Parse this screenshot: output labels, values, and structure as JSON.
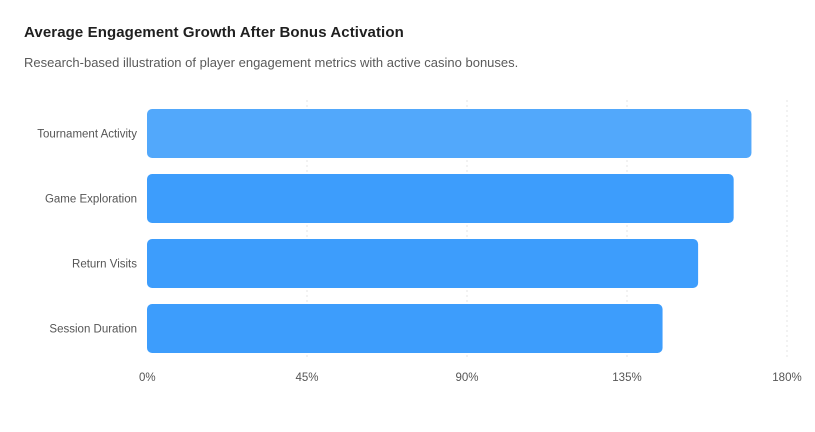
{
  "header": {
    "title": "Average Engagement Growth After Bonus Activation",
    "subtitle": "Research-based illustration of player engagement metrics with active casino bonuses."
  },
  "colors": {
    "bar_top": "#52a8fb",
    "bar": "#3d9dfc",
    "grid": "#e6e6e6"
  },
  "chart_data": {
    "type": "bar",
    "orientation": "horizontal",
    "title": "Average Engagement Growth After Bonus Activation",
    "subtitle": "Research-based illustration of player engagement metrics with active casino bonuses.",
    "categories": [
      "Tournament Activity",
      "Game Exploration",
      "Return Visits",
      "Session Duration"
    ],
    "values": [
      170,
      165,
      155,
      145
    ],
    "xlim": [
      0,
      180
    ],
    "xticks": [
      0,
      45,
      90,
      135,
      180
    ],
    "tick_labels": [
      "0%",
      "45%",
      "90%",
      "135%",
      "180%"
    ],
    "xlabel": "",
    "ylabel": "",
    "grid": "vertical dotted",
    "legend": "none"
  }
}
